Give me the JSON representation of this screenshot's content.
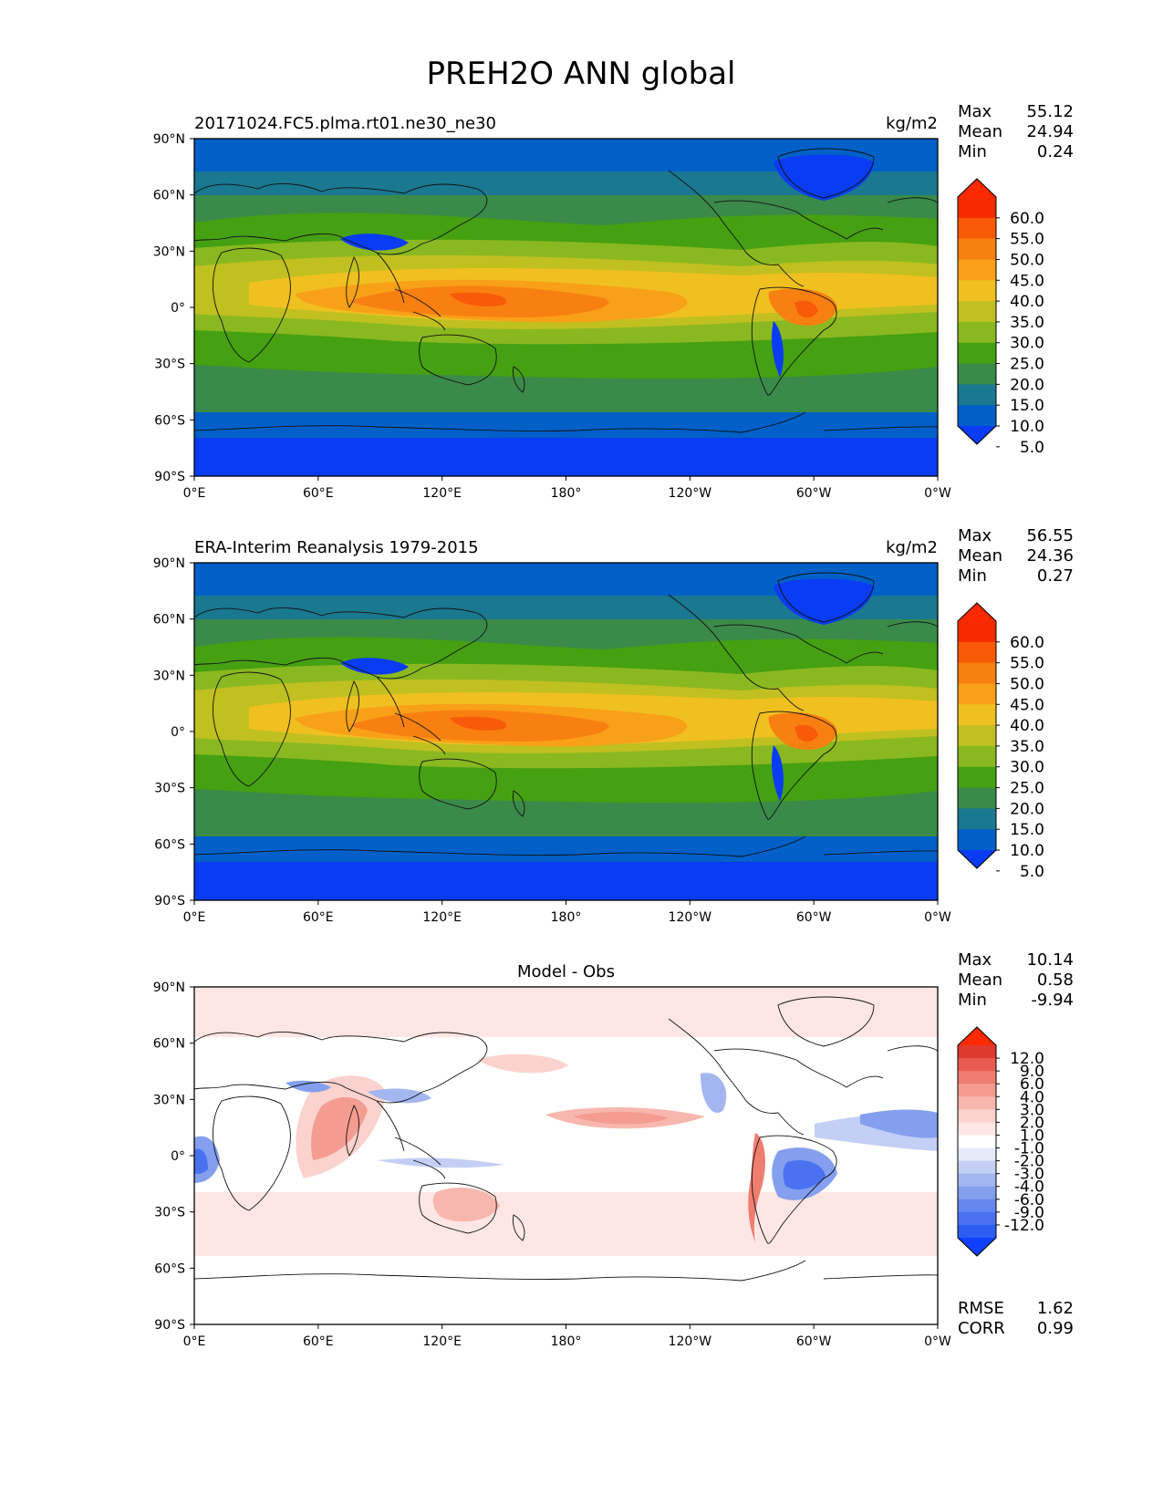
{
  "title": "PREH2O ANN global",
  "x_ticks": [
    "0°E",
    "60°E",
    "120°E",
    "180°",
    "120°W",
    "60°W",
    "0°W"
  ],
  "y_ticks": [
    "90°N",
    "60°N",
    "30°N",
    "0°",
    "30°S",
    "60°S",
    "90°S"
  ],
  "panels": [
    {
      "name": "test",
      "left_label": "20171024.FC5.plma.rt01.ne30_ne30",
      "center_label": "",
      "units": "kg/m2",
      "stats": [
        {
          "label": "Max",
          "value": "55.12"
        },
        {
          "label": "Mean",
          "value": "24.94"
        },
        {
          "label": "Min",
          "value": "0.24"
        }
      ],
      "colorbar": [
        "60.0",
        "55.0",
        "50.0",
        "45.0",
        "40.0",
        "35.0",
        "30.0",
        "25.0",
        "20.0",
        "15.0",
        "10.0",
        "5.0"
      ],
      "extra": []
    },
    {
      "name": "ref",
      "left_label": "ERA-Interim Reanalysis 1979-2015",
      "center_label": "",
      "units": "kg/m2",
      "stats": [
        {
          "label": "Max",
          "value": "56.55"
        },
        {
          "label": "Mean",
          "value": "24.36"
        },
        {
          "label": "Min",
          "value": "0.27"
        }
      ],
      "colorbar": [
        "60.0",
        "55.0",
        "50.0",
        "45.0",
        "40.0",
        "35.0",
        "30.0",
        "25.0",
        "20.0",
        "15.0",
        "10.0",
        "5.0"
      ],
      "extra": []
    },
    {
      "name": "diff",
      "left_label": "",
      "center_label": "Model - Obs",
      "units": "",
      "stats": [
        {
          "label": "Max",
          "value": "10.14"
        },
        {
          "label": "Mean",
          "value": "0.58"
        },
        {
          "label": "Min",
          "value": "-9.94"
        }
      ],
      "colorbar": [
        "12.0",
        "9.0",
        "6.0",
        "4.0",
        "3.0",
        "2.0",
        "1.0",
        "-1.0",
        "-2.0",
        "-3.0",
        "-4.0",
        "-6.0",
        "-9.0",
        "-12.0"
      ],
      "extra": [
        {
          "label": "RMSE",
          "value": "1.62"
        },
        {
          "label": "CORR",
          "value": "0.99"
        }
      ]
    }
  ],
  "colors": {
    "seq": [
      "#0a3cf5",
      "#0060c8",
      "#1a7890",
      "#3a8a4a",
      "#45a012",
      "#8ab820",
      "#c0c020",
      "#f0c020",
      "#f8a018",
      "#f88010",
      "#f85a08",
      "#f52a00",
      "#ff2a00"
    ],
    "div": [
      "#1040ff",
      "#2d5cf2",
      "#4a72f0",
      "#6688ee",
      "#849fee",
      "#a3b6f0",
      "#c4cff5",
      "#e6ebfa",
      "#ffffff",
      "#fde6e4",
      "#fbd2cd",
      "#f8b7ae",
      "#f49c90",
      "#ef7d70",
      "#e85b4e",
      "#de3a2e",
      "#ff2a00"
    ]
  },
  "chart_data": [
    {
      "type": "heatmap",
      "title": "20171024.FC5.plma.rt01.ne30_ne30",
      "variable": "PREH2O",
      "units": "kg/m2",
      "xlim": [
        0,
        360
      ],
      "ylim": [
        -90,
        90
      ],
      "x_ticks": [
        0,
        60,
        120,
        180,
        240,
        300,
        360
      ],
      "y_ticks": [
        90,
        60,
        30,
        0,
        -30,
        -60,
        -90
      ],
      "levels": [
        5,
        10,
        15,
        20,
        25,
        30,
        35,
        40,
        45,
        50,
        55,
        60
      ],
      "stats": {
        "max": 55.12,
        "mean": 24.94,
        "min": 0.24
      }
    },
    {
      "type": "heatmap",
      "title": "ERA-Interim Reanalysis 1979-2015",
      "variable": "PREH2O",
      "units": "kg/m2",
      "xlim": [
        0,
        360
      ],
      "ylim": [
        -90,
        90
      ],
      "x_ticks": [
        0,
        60,
        120,
        180,
        240,
        300,
        360
      ],
      "y_ticks": [
        90,
        60,
        30,
        0,
        -30,
        -60,
        -90
      ],
      "levels": [
        5,
        10,
        15,
        20,
        25,
        30,
        35,
        40,
        45,
        50,
        55,
        60
      ],
      "stats": {
        "max": 56.55,
        "mean": 24.36,
        "min": 0.27
      }
    },
    {
      "type": "heatmap",
      "title": "Model - Obs",
      "variable": "PREH2O",
      "units": "kg/m2",
      "xlim": [
        0,
        360
      ],
      "ylim": [
        -90,
        90
      ],
      "x_ticks": [
        0,
        60,
        120,
        180,
        240,
        300,
        360
      ],
      "y_ticks": [
        90,
        60,
        30,
        0,
        -30,
        -60,
        -90
      ],
      "levels": [
        -12,
        -9,
        -6,
        -4,
        -3,
        -2,
        -1,
        1,
        2,
        3,
        4,
        6,
        9,
        12
      ],
      "stats": {
        "max": 10.14,
        "mean": 0.58,
        "min": -9.94,
        "rmse": 1.62,
        "corr": 0.99
      }
    }
  ]
}
